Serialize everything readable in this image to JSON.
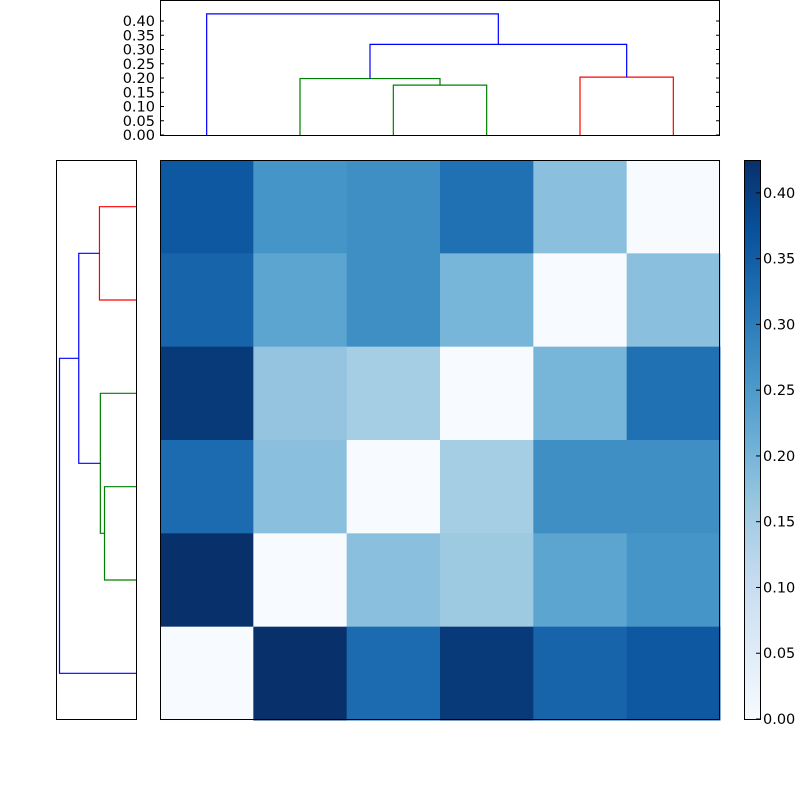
{
  "chart_data": {
    "type": "heatmap",
    "title": "",
    "description": "Clustered distance matrix heatmap with top and left dendrograms and colorbar",
    "rows": 6,
    "cols": 6,
    "matrix": [
      [
        0.36,
        0.26,
        0.27,
        0.32,
        0.18,
        0.0
      ],
      [
        0.34,
        0.23,
        0.27,
        0.2,
        0.0,
        0.18
      ],
      [
        0.41,
        0.17,
        0.15,
        0.0,
        0.2,
        0.32
      ],
      [
        0.33,
        0.18,
        0.0,
        0.15,
        0.27,
        0.27
      ],
      [
        0.43,
        0.0,
        0.18,
        0.16,
        0.23,
        0.26
      ],
      [
        0.0,
        0.43,
        0.33,
        0.41,
        0.34,
        0.36
      ]
    ],
    "colormap": "Blues",
    "colorbar": {
      "min": 0.0,
      "max": 0.425,
      "ticks": [
        "0.00",
        "0.05",
        "0.10",
        "0.15",
        "0.20",
        "0.25",
        "0.30",
        "0.35",
        "0.40"
      ]
    },
    "top_dendrogram": {
      "ylim": [
        0.0,
        0.425
      ],
      "ticks": [
        "0.00",
        "0.05",
        "0.10",
        "0.15",
        "0.20",
        "0.25",
        "0.30",
        "0.35",
        "0.40"
      ],
      "links": [
        {
          "left": 2.5,
          "right": 3.5,
          "height": 0.175,
          "left_h": 0,
          "right_h": 0,
          "color": "#008000"
        },
        {
          "left": 1.5,
          "right": 3.0,
          "height": 0.198,
          "left_h": 0,
          "right_h": 0.175,
          "color": "#008000"
        },
        {
          "left": 4.5,
          "right": 5.5,
          "height": 0.203,
          "left_h": 0,
          "right_h": 0,
          "color": "#ff0000"
        },
        {
          "left": 2.25,
          "right": 5.0,
          "height": 0.318,
          "left_h": 0.198,
          "right_h": 0.203,
          "color": "#0000ff"
        },
        {
          "left": 0.5,
          "right": 3.625,
          "height": 0.425,
          "left_h": 0,
          "right_h": 0.318,
          "color": "#0000ff"
        }
      ]
    },
    "left_dendrogram": {
      "links": [
        {
          "top": 4.5,
          "bottom": 3.5,
          "height": 0.175,
          "color": "#008000"
        },
        {
          "top": 4.0,
          "bottom": 2.5,
          "height": 0.198,
          "color": "#008000"
        },
        {
          "top": 0.5,
          "bottom": 1.5,
          "height": 0.203,
          "color": "#ff0000"
        },
        {
          "top": 1.0,
          "bottom": 3.25,
          "height": 0.318,
          "color": "#0000ff"
        },
        {
          "top": 2.125,
          "bottom": 5.5,
          "height": 0.425,
          "color": "#0000ff"
        }
      ]
    },
    "xlabel": "",
    "ylabel": ""
  }
}
